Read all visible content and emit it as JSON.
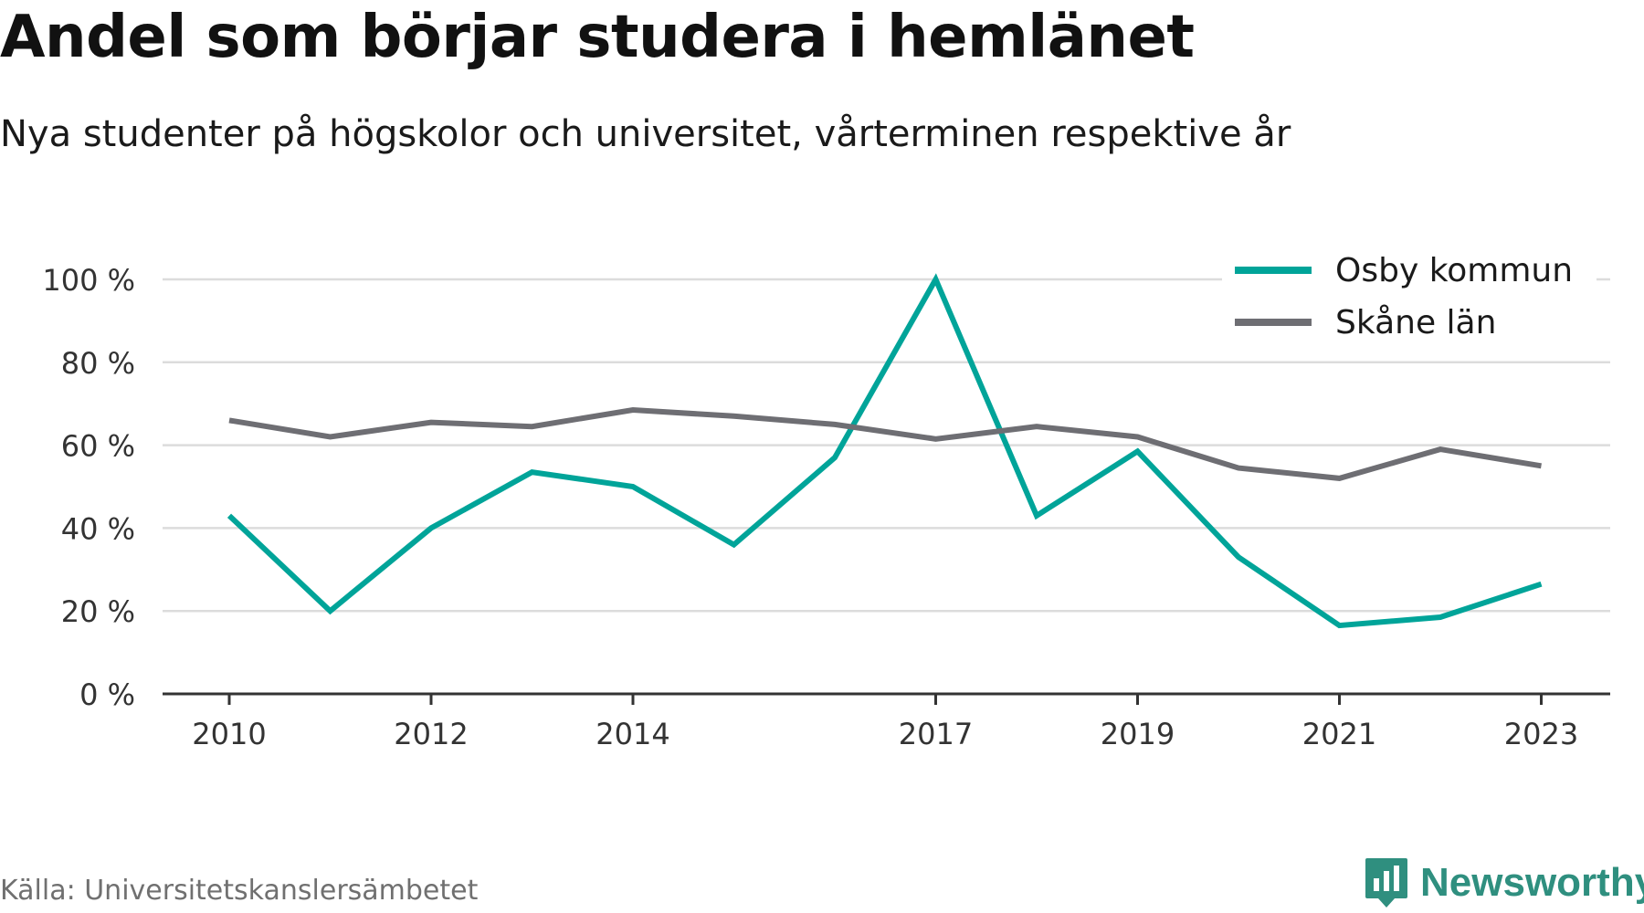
{
  "title": "Andel som börjar studera i hemlänet",
  "subtitle": "Nya studenter på högskolor och universitet, vårterminen respektive år",
  "source": "Källa: Universitetskanslersämbetet",
  "brand": {
    "name": "Newsworthy",
    "icon": "newsworthy-logo-icon",
    "color": "#2f8f7f"
  },
  "chart_data": {
    "type": "line",
    "x": [
      2010,
      2011,
      2012,
      2013,
      2014,
      2015,
      2016,
      2017,
      2018,
      2019,
      2020,
      2021,
      2022,
      2023
    ],
    "x_tick_labels": [
      "2010",
      "2012",
      "2014",
      "2017",
      "2019",
      "2021",
      "2023"
    ],
    "y_tick_labels": [
      "0 %",
      "20 %",
      "40 %",
      "60 %",
      "80 %",
      "100 %"
    ],
    "y_ticks": [
      0,
      20,
      40,
      60,
      80,
      100
    ],
    "ylim": [
      0,
      100
    ],
    "grid": true,
    "legend_position": "top-right",
    "series": [
      {
        "name": "Osby kommun",
        "color": "#00a499",
        "values": [
          43,
          20,
          40,
          53.5,
          50,
          36,
          57,
          100,
          43,
          58.5,
          33,
          16.5,
          18.5,
          26.5
        ]
      },
      {
        "name": "Skåne län",
        "color": "#6e6e73",
        "values": [
          66,
          62,
          65.5,
          64.5,
          68.5,
          67,
          65,
          61.5,
          64.5,
          62,
          54.5,
          52,
          59,
          55
        ]
      }
    ]
  }
}
